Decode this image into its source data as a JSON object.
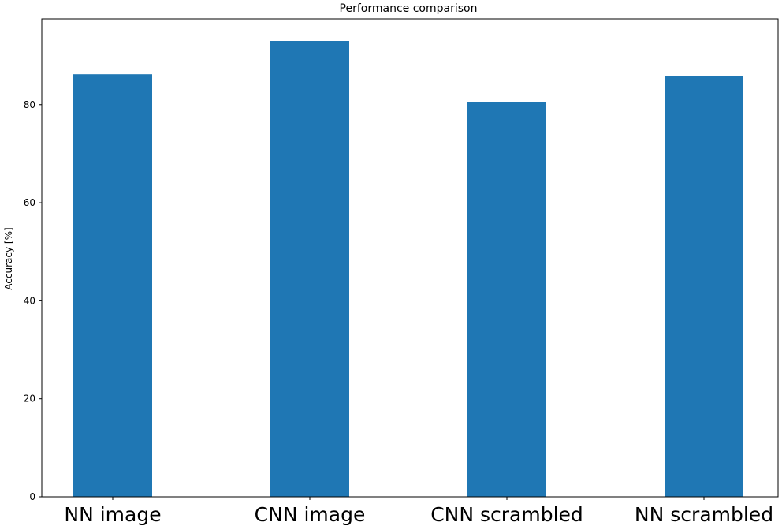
{
  "chart_data": {
    "type": "bar",
    "title": "Performance comparison",
    "xlabel": "",
    "ylabel": "Accuracy [%]",
    "categories": [
      "NN image",
      "CNN image",
      "CNN scrambled",
      "NN scrambled"
    ],
    "values": [
      86.2,
      93.0,
      80.6,
      85.8
    ],
    "ylim": [
      0,
      97.5
    ],
    "yticks": [
      0,
      20,
      40,
      60,
      80
    ],
    "bar_color": "#1f77b4",
    "grid": false,
    "legend": "none"
  }
}
